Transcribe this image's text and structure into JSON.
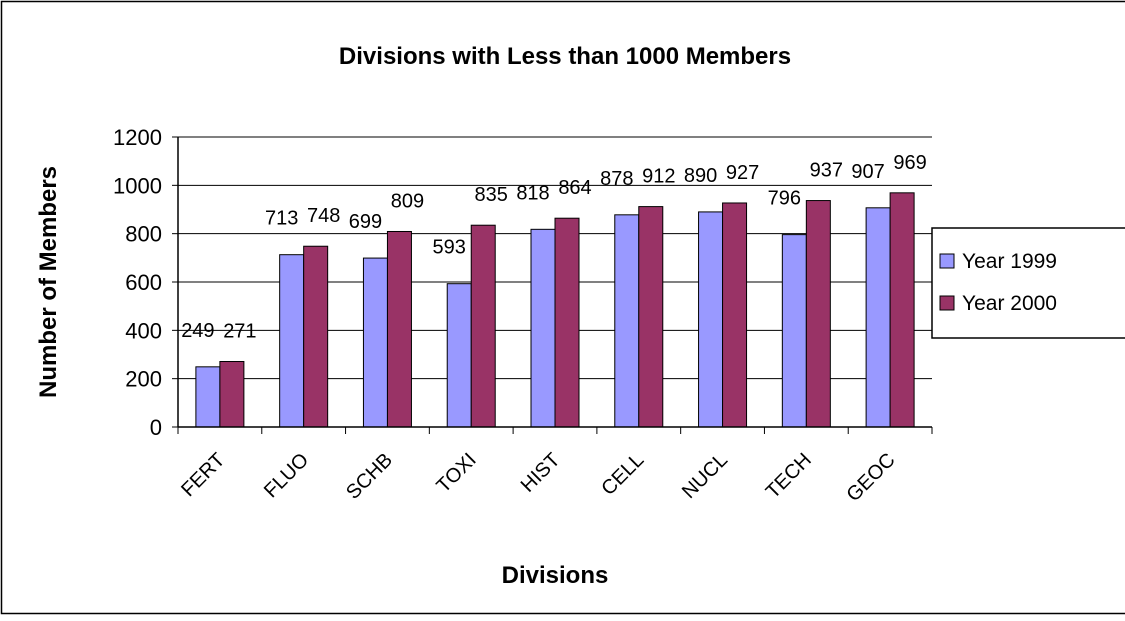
{
  "chart_data": {
    "type": "bar",
    "title": "Divisions with Less than 1000 Members",
    "x_label": "Divisions",
    "y_label": "Number of Members",
    "categories": [
      "FERT",
      "FLUO",
      "SCHB",
      "TOXI",
      "HIST",
      "CELL",
      "NUCL",
      "TECH",
      "GEOC"
    ],
    "series": [
      {
        "name": "Year 1999",
        "color": "#9999ff",
        "values": [
          249,
          713,
          699,
          593,
          818,
          878,
          890,
          796,
          907
        ]
      },
      {
        "name": "Year 2000",
        "color": "#993366",
        "values": [
          271,
          748,
          809,
          835,
          864,
          912,
          927,
          937,
          969
        ]
      }
    ],
    "ylim": [
      0,
      1200
    ],
    "yticks": [
      0,
      200,
      400,
      600,
      800,
      1000,
      1200
    ],
    "grid": true,
    "legend": "right"
  }
}
